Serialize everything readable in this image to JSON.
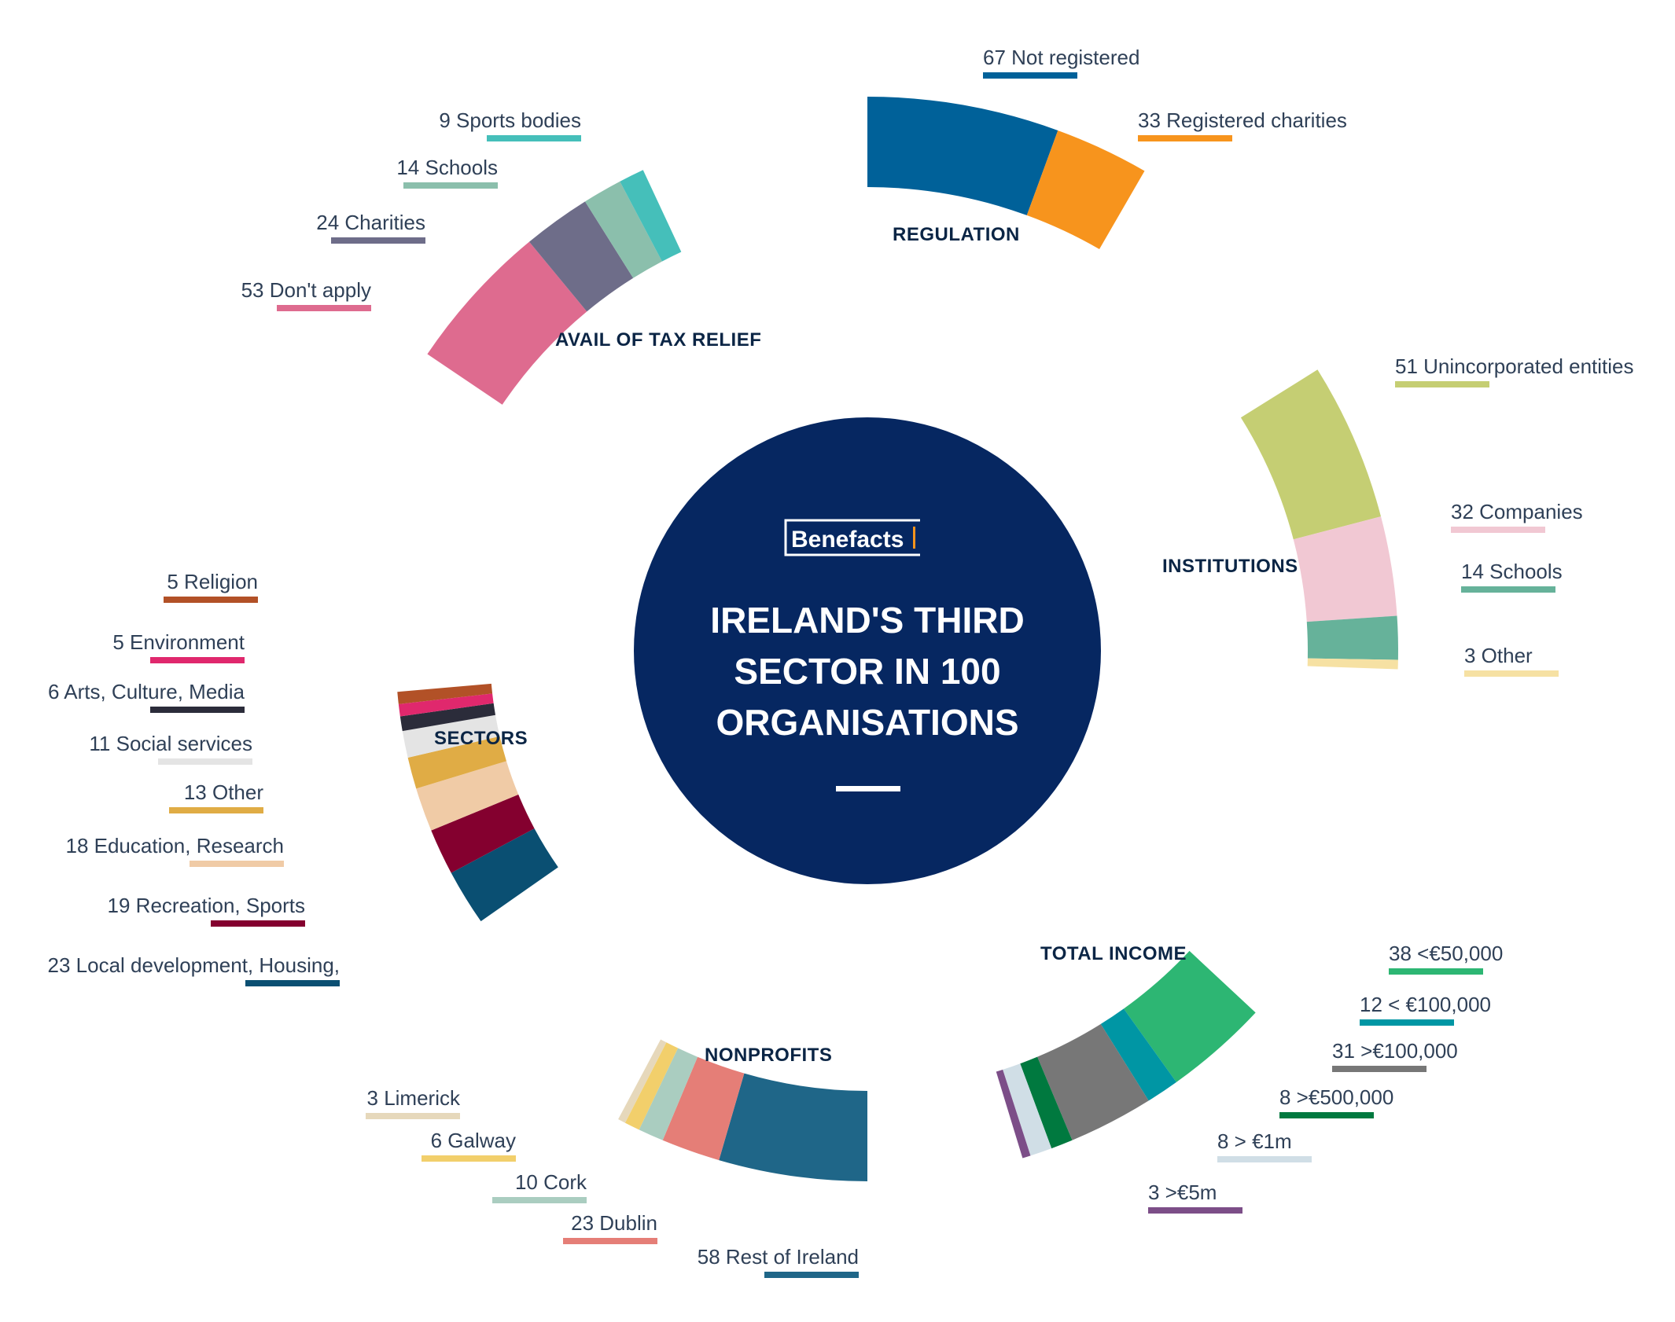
{
  "center": {
    "logo": "Benefacts",
    "title_lines": [
      "IRELAND'S THIRD",
      "SECTOR IN 100",
      "ORGANISATIONS"
    ],
    "circle_color": "#062761",
    "logo_accent_color": "#f7941d"
  },
  "chart_data": [
    {
      "type": "pie",
      "title": "REGULATION",
      "slices": [
        {
          "label": "67 Not registered",
          "value": 67,
          "color": "#006199"
        },
        {
          "label": "33 Registered charities",
          "value": 33,
          "color": "#f7941d"
        }
      ]
    },
    {
      "type": "pie",
      "title": "INSTITUTIONS",
      "slices": [
        {
          "label": "51 Unincorporated entities",
          "value": 51,
          "color": "#c5ce73"
        },
        {
          "label": "32 Companies",
          "value": 32,
          "color": "#f1c8d3"
        },
        {
          "label": "14 Schools",
          "value": 14,
          "color": "#66b29a"
        },
        {
          "label": "3 Other",
          "value": 3,
          "color": "#f6e1a3"
        }
      ]
    },
    {
      "type": "pie",
      "title": "TOTAL INCOME",
      "slices": [
        {
          "label": "38 <€50,000",
          "value": 38,
          "color": "#2db673"
        },
        {
          "label": "12 < €100,000",
          "value": 12,
          "color": "#0096a4"
        },
        {
          "label": "31 >€100,000",
          "value": 31,
          "color": "#777777"
        },
        {
          "label": "8 >€500,000",
          "value": 8,
          "color": "#00793f"
        },
        {
          "label": "8 > €1m",
          "value": 8,
          "color": "#d0dee6"
        },
        {
          "label": "3 >€5m",
          "value": 3,
          "color": "#7c4e88"
        }
      ]
    },
    {
      "type": "pie",
      "title": "NONPROFITS",
      "slices": [
        {
          "label": "58 Rest of Ireland",
          "value": 58,
          "color": "#1f6688"
        },
        {
          "label": "23 Dublin",
          "value": 23,
          "color": "#e57e77"
        },
        {
          "label": "10 Cork",
          "value": 10,
          "color": "#aacdc0"
        },
        {
          "label": "6 Galway",
          "value": 6,
          "color": "#f2cf6b"
        },
        {
          "label": "3 Limerick",
          "value": 3,
          "color": "#e6d8bb"
        }
      ]
    },
    {
      "type": "pie",
      "title": "SECTORS",
      "slices": [
        {
          "label": "23 Local development, Housing,",
          "value": 23,
          "color": "#0a4f72"
        },
        {
          "label": "19 Recreation, Sports",
          "value": 19,
          "color": "#84002f"
        },
        {
          "label": "18 Education, Research",
          "value": 18,
          "color": "#f0cba6"
        },
        {
          "label": "13 Other",
          "value": 13,
          "color": "#e0ac45"
        },
        {
          "label": "11 Social services",
          "value": 11,
          "color": "#e4e4e4"
        },
        {
          "label": "6 Arts, Culture, Media",
          "value": 6,
          "color": "#2b2c3a"
        },
        {
          "label": "5 Environment",
          "value": 5,
          "color": "#e0286d"
        },
        {
          "label": "5 Religion",
          "value": 5,
          "color": "#b25127"
        }
      ]
    },
    {
      "type": "pie",
      "title": "AVAIL OF TAX RELIEF",
      "slices": [
        {
          "label": "53 Don't apply",
          "value": 53,
          "color": "#de6b8f"
        },
        {
          "label": "24 Charities",
          "value": 24,
          "color": "#6e6d89"
        },
        {
          "label": "14 Schools",
          "value": 14,
          "color": "#8bbfac"
        },
        {
          "label": "9 Sports bodies",
          "value": 9,
          "color": "#45bfba"
        }
      ]
    }
  ]
}
